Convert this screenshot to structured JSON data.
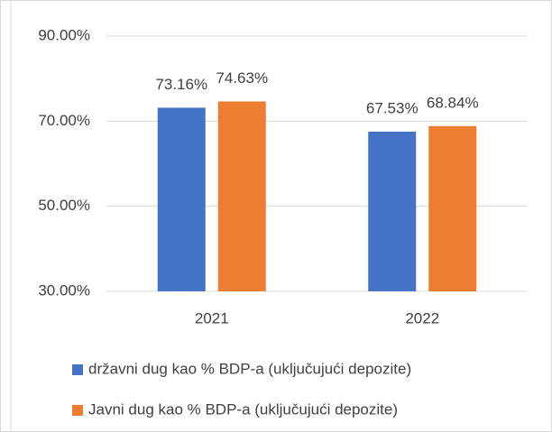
{
  "chart_data": {
    "type": "bar",
    "categories": [
      "2021",
      "2022"
    ],
    "series": [
      {
        "name": "državni dug kao % BDP-a (uključujući depozite)",
        "color": "#4472c4",
        "values": [
          73.16,
          67.53
        ],
        "value_labels": [
          "73.16%",
          "67.53%"
        ]
      },
      {
        "name": "Javni dug kao % BDP-a (uključujući depozite)",
        "color": "#ed7d31",
        "values": [
          74.63,
          68.84
        ],
        "value_labels": [
          "74.63%",
          "68.84%"
        ]
      }
    ],
    "ylim": [
      30,
      90
    ],
    "yticks": [
      {
        "value": 30,
        "label": "30.00%"
      },
      {
        "value": 50,
        "label": "50.00%"
      },
      {
        "value": 70,
        "label": "70.00%"
      },
      {
        "value": 90,
        "label": "90.00%"
      }
    ],
    "grid": true,
    "legend": "bottom"
  }
}
